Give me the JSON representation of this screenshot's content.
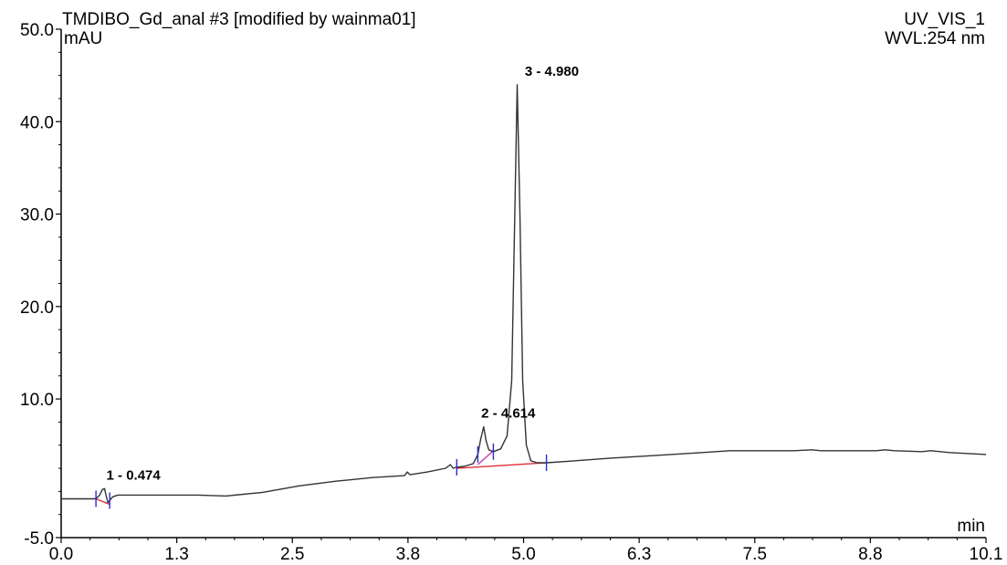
{
  "header": {
    "title": "TMDIBO_Gd_anal #3 [modified by wainma01]",
    "channel": "UV_VIS_1",
    "wavelength": "WVL:254 nm"
  },
  "chart_data": {
    "type": "line",
    "ylabel": "mAU",
    "xlabel": "min",
    "xlim": [
      0.0,
      10.1
    ],
    "ylim": [
      -5.0,
      50.0
    ],
    "x_ticks": [
      "0.0",
      "1.3",
      "2.5",
      "3.8",
      "5.0",
      "6.3",
      "7.5",
      "8.8",
      "10.1"
    ],
    "y_ticks": [
      "-5.0",
      "10.0",
      "20.0",
      "30.0",
      "40.0",
      "50.0"
    ],
    "grid": false,
    "series": [
      {
        "name": "",
        "x": [
          0.0,
          0.38,
          0.42,
          0.45,
          0.474,
          0.49,
          0.51,
          0.53,
          0.56,
          0.62,
          1.0,
          1.5,
          1.8,
          2.2,
          2.6,
          3.0,
          3.4,
          3.75,
          3.78,
          3.81,
          4.0,
          4.2,
          4.25,
          4.28,
          4.31,
          4.4,
          4.5,
          4.55,
          4.58,
          4.614,
          4.64,
          4.67,
          4.72,
          4.8,
          4.87,
          4.92,
          4.95,
          4.98,
          5.01,
          5.04,
          5.08,
          5.13,
          5.2,
          5.3,
          5.6,
          6.0,
          6.5,
          7.0,
          7.3,
          7.6,
          8.0,
          8.2,
          8.3,
          8.6,
          8.9,
          9.0,
          9.1,
          9.4,
          9.5,
          9.7,
          10.1
        ],
        "y": [
          -0.8,
          -0.8,
          -0.4,
          0.2,
          0.3,
          -0.4,
          -1.2,
          -1.0,
          -0.6,
          -0.4,
          -0.4,
          -0.4,
          -0.5,
          -0.1,
          0.6,
          1.1,
          1.5,
          1.7,
          2.1,
          1.8,
          2.1,
          2.5,
          2.9,
          2.5,
          2.6,
          2.7,
          3.0,
          4.0,
          5.6,
          7.0,
          5.5,
          4.5,
          4.3,
          4.6,
          6.0,
          12.0,
          28.0,
          44.0,
          30.0,
          12.0,
          5.0,
          3.3,
          3.1,
          3.1,
          3.3,
          3.6,
          3.9,
          4.2,
          4.4,
          4.4,
          4.4,
          4.5,
          4.4,
          4.4,
          4.4,
          4.5,
          4.4,
          4.3,
          4.4,
          4.2,
          4.0
        ]
      }
    ],
    "peaks": [
      {
        "label": "1 - 0.474",
        "x": 0.474,
        "y": 0.3
      },
      {
        "label": "2 - 4.614",
        "x": 4.614,
        "y": 7.0
      },
      {
        "label": "3 - 4.980",
        "x": 4.98,
        "y": 44.0
      }
    ],
    "baselines": [
      {
        "x": [
          0.38,
          0.53
        ],
        "y": [
          -0.8,
          -1.4
        ],
        "color": "#e0303a"
      },
      {
        "x": [
          4.32,
          5.3
        ],
        "y": [
          2.5,
          3.1
        ],
        "color": "#e0303a"
      },
      {
        "x": [
          4.55,
          4.72
        ],
        "y": [
          2.9,
          4.4
        ],
        "color": "#c53ec0"
      }
    ],
    "markers": [
      0.38,
      0.53,
      4.32,
      4.55,
      4.72,
      5.3
    ],
    "colors": {
      "trace": "#333333",
      "baseline": "#e0303a",
      "split": "#c53ec0",
      "marker": "#2b2bd6"
    }
  }
}
